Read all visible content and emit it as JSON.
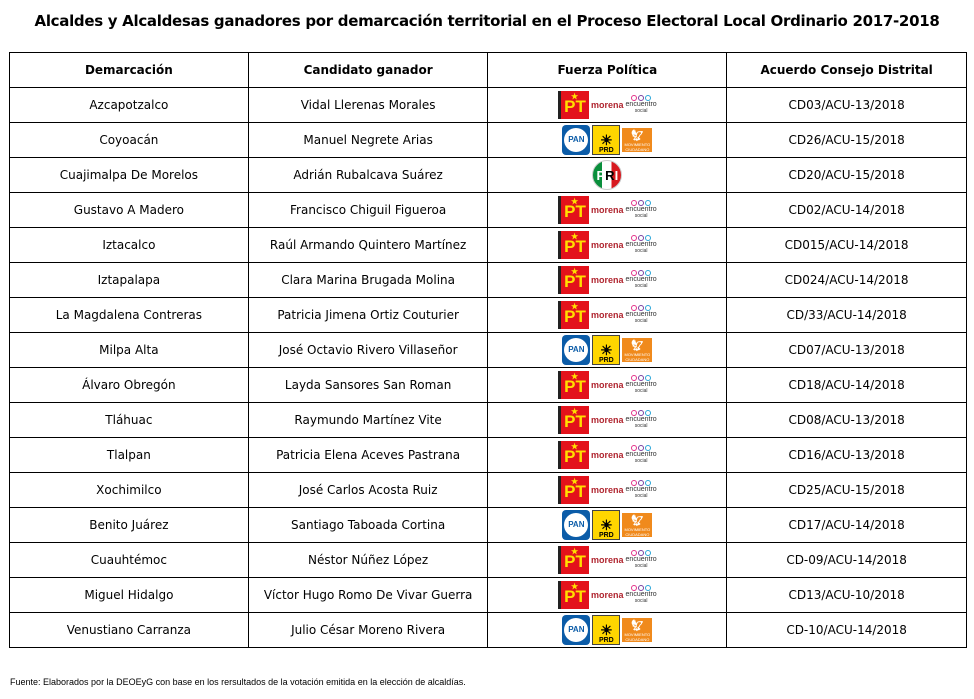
{
  "title": "Alcaldes y Alcaldesas ganadores por demarcación territorial en el Proceso Electoral Local Ordinario 2017-2018",
  "headers": [
    "Demarcación",
    "Candidato ganador",
    "Fuerza Política",
    "Acuerdo Consejo Distrital"
  ],
  "logos": {
    "pt": [
      "PT",
      "morena",
      "encuentro",
      "social"
    ],
    "pan": [
      "PAN",
      "PRD",
      "MOVIMIENTO CIUDADANO"
    ],
    "pri": [
      "P",
      "R",
      "I"
    ]
  },
  "colors": {
    "pt": "#e3121b",
    "pan": "#0b5ca8",
    "prd": "#ffd600",
    "mc": "#f08a1c",
    "morena": "#b0252f"
  },
  "rows": [
    {
      "demarcacion": "Azcapotzalco",
      "candidato": "Vidal Llerenas Morales",
      "fuerza": "pt",
      "acuerdo": "CD03/ACU-13/2018"
    },
    {
      "demarcacion": "Coyoacán",
      "candidato": "Manuel Negrete Arias",
      "fuerza": "pan",
      "acuerdo": "CD26/ACU-15/2018"
    },
    {
      "demarcacion": "Cuajimalpa De Morelos",
      "candidato": "Adrián Rubalcava Suárez",
      "fuerza": "pri",
      "acuerdo": "CD20/ACU-15/2018"
    },
    {
      "demarcacion": "Gustavo A Madero",
      "candidato": "Francisco Chiguil Figueroa",
      "fuerza": "pt",
      "acuerdo": "CD02/ACU-14/2018"
    },
    {
      "demarcacion": "Iztacalco",
      "candidato": "Raúl Armando Quintero Martínez",
      "fuerza": "pt",
      "acuerdo": "CD015/ACU-14/2018"
    },
    {
      "demarcacion": "Iztapalapa",
      "candidato": "Clara Marina Brugada Molina",
      "fuerza": "pt",
      "acuerdo": "CD024/ACU-14/2018"
    },
    {
      "demarcacion": "La Magdalena Contreras",
      "candidato": "Patricia Jimena Ortiz Couturier",
      "fuerza": "pt",
      "acuerdo": "CD/33/ACU-14/2018"
    },
    {
      "demarcacion": "Milpa Alta",
      "candidato": "José Octavio Rivero Villaseñor",
      "fuerza": "pan",
      "acuerdo": "CD07/ACU-13/2018"
    },
    {
      "demarcacion": "Álvaro Obregón",
      "candidato": "Layda Sansores San Roman",
      "fuerza": "pt",
      "acuerdo": "CD18/ACU-14/2018"
    },
    {
      "demarcacion": "Tláhuac",
      "candidato": "Raymundo Martínez Vite",
      "fuerza": "pt",
      "acuerdo": "CD08/ACU-13/2018"
    },
    {
      "demarcacion": "Tlalpan",
      "candidato": "Patricia Elena Aceves Pastrana",
      "fuerza": "pt",
      "acuerdo": "CD16/ACU-13/2018"
    },
    {
      "demarcacion": "Xochimilco",
      "candidato": "José Carlos Acosta Ruiz",
      "fuerza": "pt",
      "acuerdo": "CD25/ACU-15/2018"
    },
    {
      "demarcacion": "Benito Juárez",
      "candidato": "Santiago Taboada Cortina",
      "fuerza": "pan",
      "acuerdo": "CD17/ACU-14/2018"
    },
    {
      "demarcacion": "Cuauhtémoc",
      "candidato": "Néstor Núñez López",
      "fuerza": "pt",
      "acuerdo": "CD-09/ACU-14/2018"
    },
    {
      "demarcacion": "Miguel Hidalgo",
      "candidato": "Víctor Hugo Romo De Vivar Guerra",
      "fuerza": "pt",
      "acuerdo": "CD13/ACU-10/2018"
    },
    {
      "demarcacion": "Venustiano Carranza",
      "candidato": "Julio César Moreno Rivera",
      "fuerza": "pan",
      "acuerdo": "CD-10/ACU-14/2018"
    }
  ],
  "footer": "Fuente: Elaborados por la DEOEyG con base en los rersultados de la votación emitida en la elección de alcaldías."
}
